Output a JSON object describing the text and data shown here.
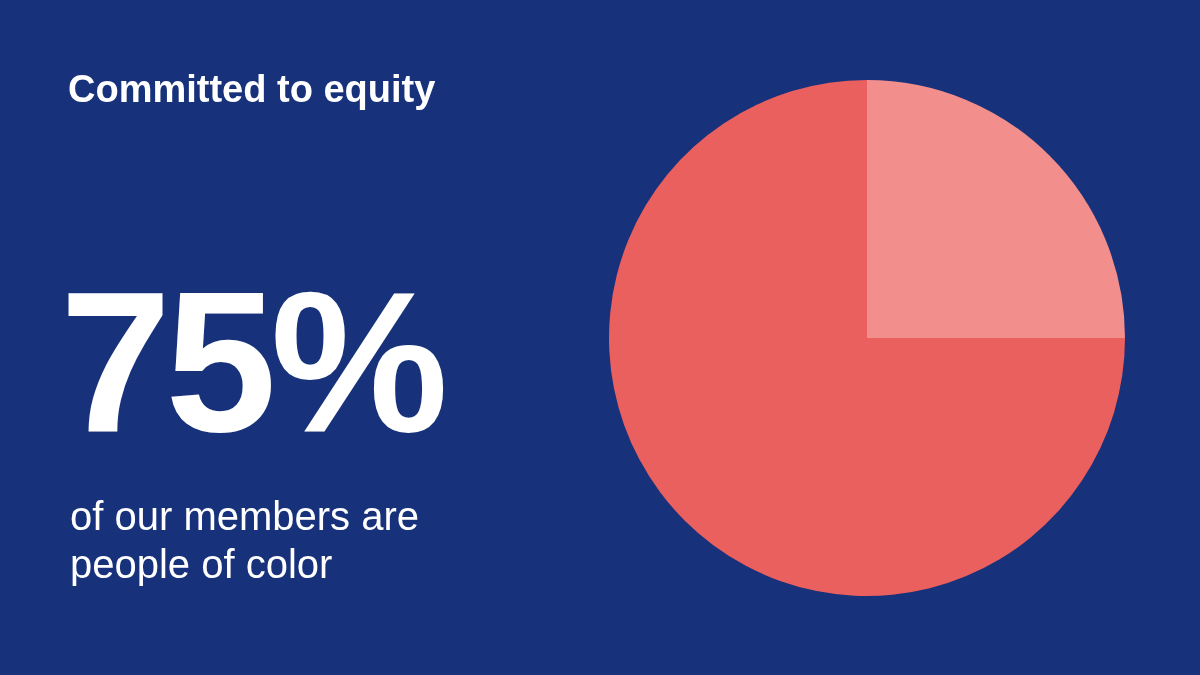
{
  "chart_data": {
    "type": "pie",
    "title": "Committed to equity",
    "categories": [
      null,
      null
    ],
    "values": [
      25,
      75
    ],
    "colors": [
      "#f28e8c",
      "#e9605e"
    ],
    "annotations": [
      "75%",
      "of our members are people of color"
    ],
    "legend": false
  }
}
